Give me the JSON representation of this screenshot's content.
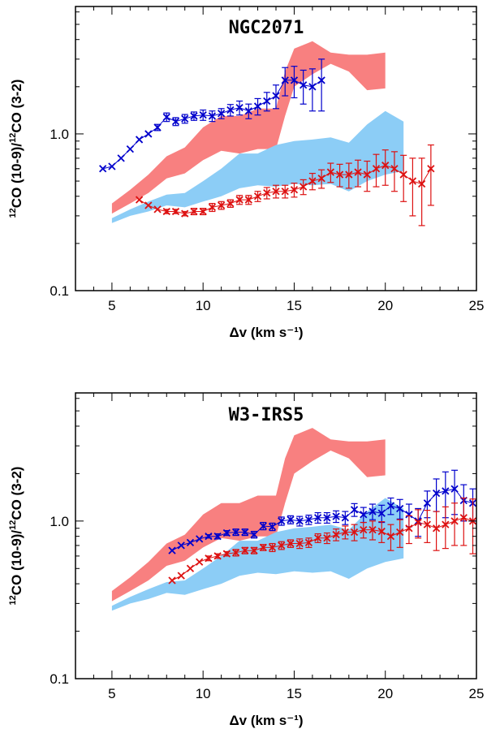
{
  "figure": {
    "colors": {
      "obs_blue": "#0000cc",
      "obs_red": "#dd1111",
      "model_red": "#f88080",
      "model_blue": "#8ccdf6",
      "axis": "#000000"
    }
  },
  "chart_data": [
    {
      "type": "line",
      "title": "NGC2071",
      "xlabel": "Δv (km s⁻¹)",
      "ylabel_parts": {
        "sup": "12",
        "main": "CO (10-9)/",
        "sup2": "12",
        "rest": "CO (3-2)"
      },
      "xlim": [
        3,
        25
      ],
      "ylim": [
        0.1,
        6.5
      ],
      "yscale": "log",
      "xticks": [
        "5",
        "10",
        "15",
        "20",
        "25"
      ],
      "yticks": [
        "0.1",
        "1.0"
      ],
      "bands": [
        {
          "name": "model-red-band",
          "x": [
            5,
            6,
            7,
            8,
            9,
            10,
            11,
            12,
            13,
            14,
            14.5,
            15,
            16,
            17,
            18,
            19,
            20
          ],
          "low": [
            0.31,
            0.36,
            0.42,
            0.52,
            0.56,
            0.68,
            0.78,
            0.75,
            0.8,
            0.8,
            1.3,
            2.0,
            2.4,
            2.8,
            2.5,
            1.9,
            1.95
          ],
          "high": [
            0.36,
            0.44,
            0.55,
            0.72,
            0.82,
            1.1,
            1.3,
            1.3,
            1.45,
            1.45,
            2.5,
            3.5,
            3.9,
            3.3,
            3.2,
            3.2,
            3.3
          ]
        },
        {
          "name": "model-blue-band",
          "x": [
            5,
            6,
            7,
            8,
            9,
            10,
            11,
            12,
            13,
            14,
            15,
            16,
            17,
            18,
            19,
            20,
            21
          ],
          "low": [
            0.27,
            0.3,
            0.32,
            0.35,
            0.34,
            0.37,
            0.4,
            0.45,
            0.47,
            0.46,
            0.48,
            0.47,
            0.48,
            0.43,
            0.5,
            0.55,
            0.58
          ],
          "high": [
            0.29,
            0.33,
            0.37,
            0.41,
            0.42,
            0.5,
            0.6,
            0.75,
            0.75,
            0.85,
            0.9,
            0.92,
            0.95,
            0.88,
            1.15,
            1.4,
            1.2
          ]
        }
      ],
      "series": [
        {
          "name": "blue-points",
          "x": [
            4.5,
            5,
            5.5,
            6,
            6.5,
            7,
            7.5,
            8,
            8.5,
            9,
            9.5,
            10,
            10.5,
            11,
            11.5,
            12,
            12.5,
            13,
            13.5,
            14,
            14.5,
            15,
            15.5,
            16,
            16.5
          ],
          "y": [
            0.6,
            0.62,
            0.7,
            0.8,
            0.92,
            1.0,
            1.1,
            1.28,
            1.2,
            1.25,
            1.3,
            1.32,
            1.3,
            1.35,
            1.42,
            1.47,
            1.4,
            1.5,
            1.62,
            1.75,
            2.2,
            2.2,
            2.05,
            2.0,
            2.2
          ],
          "err": [
            0,
            0,
            0,
            0,
            0,
            0,
            0.05,
            0.08,
            0.07,
            0.08,
            0.08,
            0.1,
            0.1,
            0.1,
            0.12,
            0.15,
            0.15,
            0.18,
            0.22,
            0.3,
            0.45,
            0.5,
            0.5,
            0.6,
            0.8
          ]
        },
        {
          "name": "red-points",
          "x": [
            6.5,
            7,
            7.5,
            8,
            8.5,
            9,
            9.5,
            10,
            10.5,
            11,
            11.5,
            12,
            12.5,
            13,
            13.5,
            14,
            14.5,
            15,
            15.5,
            16,
            16.5,
            17,
            17.5,
            18,
            18.5,
            19,
            19.5,
            20,
            20.5,
            21,
            21.5,
            22,
            22.5
          ],
          "y": [
            0.38,
            0.35,
            0.33,
            0.32,
            0.32,
            0.31,
            0.32,
            0.32,
            0.34,
            0.35,
            0.36,
            0.38,
            0.38,
            0.4,
            0.42,
            0.43,
            0.43,
            0.44,
            0.46,
            0.5,
            0.52,
            0.57,
            0.55,
            0.55,
            0.57,
            0.55,
            0.6,
            0.63,
            0.6,
            0.55,
            0.5,
            0.48,
            0.6
          ],
          "err": [
            0,
            0,
            0,
            0.01,
            0.01,
            0.01,
            0.015,
            0.015,
            0.02,
            0.02,
            0.02,
            0.025,
            0.025,
            0.03,
            0.035,
            0.04,
            0.04,
            0.045,
            0.05,
            0.06,
            0.07,
            0.08,
            0.09,
            0.1,
            0.11,
            0.12,
            0.14,
            0.16,
            0.17,
            0.18,
            0.2,
            0.22,
            0.25
          ]
        }
      ]
    },
    {
      "type": "line",
      "title": "W3-IRS5",
      "xlabel": "Δv (km s⁻¹)",
      "ylabel_parts": {
        "sup": "12",
        "main": "CO (10-9)/",
        "sup2": "12",
        "rest": "CO (3-2)"
      },
      "xlim": [
        3,
        25
      ],
      "ylim": [
        0.1,
        6.5
      ],
      "yscale": "log",
      "xticks": [
        "5",
        "10",
        "15",
        "20",
        "25"
      ],
      "yticks": [
        "0.1",
        "1.0"
      ],
      "bands": [
        {
          "name": "model-red-band",
          "x": [
            5,
            6,
            7,
            8,
            9,
            10,
            11,
            12,
            13,
            14,
            14.5,
            15,
            16,
            17,
            18,
            19,
            20
          ],
          "low": [
            0.31,
            0.36,
            0.42,
            0.52,
            0.56,
            0.68,
            0.78,
            0.75,
            0.8,
            0.8,
            1.3,
            2.0,
            2.4,
            2.8,
            2.5,
            1.9,
            1.95
          ],
          "high": [
            0.36,
            0.44,
            0.55,
            0.72,
            0.82,
            1.1,
            1.3,
            1.3,
            1.45,
            1.45,
            2.5,
            3.5,
            3.9,
            3.3,
            3.2,
            3.2,
            3.3
          ]
        },
        {
          "name": "model-blue-band",
          "x": [
            5,
            6,
            7,
            8,
            9,
            10,
            11,
            12,
            13,
            14,
            15,
            16,
            17,
            18,
            19,
            20,
            21
          ],
          "low": [
            0.27,
            0.3,
            0.32,
            0.35,
            0.34,
            0.37,
            0.4,
            0.45,
            0.47,
            0.46,
            0.48,
            0.47,
            0.48,
            0.43,
            0.5,
            0.55,
            0.58
          ],
          "high": [
            0.29,
            0.33,
            0.37,
            0.41,
            0.42,
            0.5,
            0.6,
            0.75,
            0.75,
            0.85,
            0.9,
            0.92,
            0.95,
            0.88,
            1.15,
            1.4,
            1.2
          ]
        }
      ],
      "series": [
        {
          "name": "blue-points",
          "x": [
            8.3,
            8.8,
            9.3,
            9.8,
            10.3,
            10.8,
            11.3,
            11.8,
            12.3,
            12.8,
            13.3,
            13.8,
            14.3,
            14.8,
            15.3,
            15.8,
            16.3,
            16.8,
            17.3,
            17.8,
            18.3,
            18.8,
            19.3,
            19.8,
            20.3,
            20.8,
            21.3,
            21.8,
            22.3,
            22.8,
            23.3,
            23.8,
            24.3,
            24.8
          ],
          "y": [
            0.65,
            0.7,
            0.73,
            0.77,
            0.8,
            0.8,
            0.84,
            0.85,
            0.85,
            0.82,
            0.93,
            0.92,
            1.0,
            1.02,
            1.0,
            1.02,
            1.05,
            1.05,
            1.07,
            1.05,
            1.18,
            1.1,
            1.15,
            1.12,
            1.25,
            1.2,
            1.1,
            1.0,
            1.3,
            1.5,
            1.55,
            1.6,
            1.35,
            1.3
          ],
          "err": [
            0,
            0,
            0,
            0,
            0.02,
            0.03,
            0.03,
            0.04,
            0.04,
            0.04,
            0.05,
            0.05,
            0.06,
            0.06,
            0.07,
            0.07,
            0.08,
            0.08,
            0.09,
            0.1,
            0.11,
            0.12,
            0.13,
            0.14,
            0.15,
            0.17,
            0.18,
            0.2,
            0.25,
            0.35,
            0.5,
            0.5,
            0.35,
            0.3
          ]
        },
        {
          "name": "red-points",
          "x": [
            8.3,
            8.8,
            9.3,
            9.8,
            10.3,
            10.8,
            11.3,
            11.8,
            12.3,
            12.8,
            13.3,
            13.8,
            14.3,
            14.8,
            15.3,
            15.8,
            16.3,
            16.8,
            17.3,
            17.8,
            18.3,
            18.8,
            19.3,
            19.8,
            20.3,
            20.8,
            21.3,
            21.8,
            22.3,
            22.8,
            23.3,
            23.8,
            24.3,
            24.8
          ],
          "y": [
            0.42,
            0.45,
            0.5,
            0.55,
            0.58,
            0.6,
            0.62,
            0.63,
            0.65,
            0.65,
            0.68,
            0.68,
            0.7,
            0.72,
            0.72,
            0.73,
            0.78,
            0.78,
            0.82,
            0.85,
            0.85,
            0.88,
            0.88,
            0.86,
            0.8,
            0.85,
            0.9,
            0.98,
            0.95,
            0.9,
            0.95,
            1.0,
            1.05,
            1.0
          ],
          "err": [
            0,
            0,
            0,
            0,
            0.02,
            0.02,
            0.02,
            0.03,
            0.03,
            0.03,
            0.03,
            0.04,
            0.04,
            0.04,
            0.05,
            0.05,
            0.05,
            0.06,
            0.07,
            0.08,
            0.1,
            0.1,
            0.12,
            0.13,
            0.15,
            0.17,
            0.18,
            0.2,
            0.22,
            0.25,
            0.28,
            0.3,
            0.35,
            0.38
          ]
        }
      ]
    }
  ]
}
